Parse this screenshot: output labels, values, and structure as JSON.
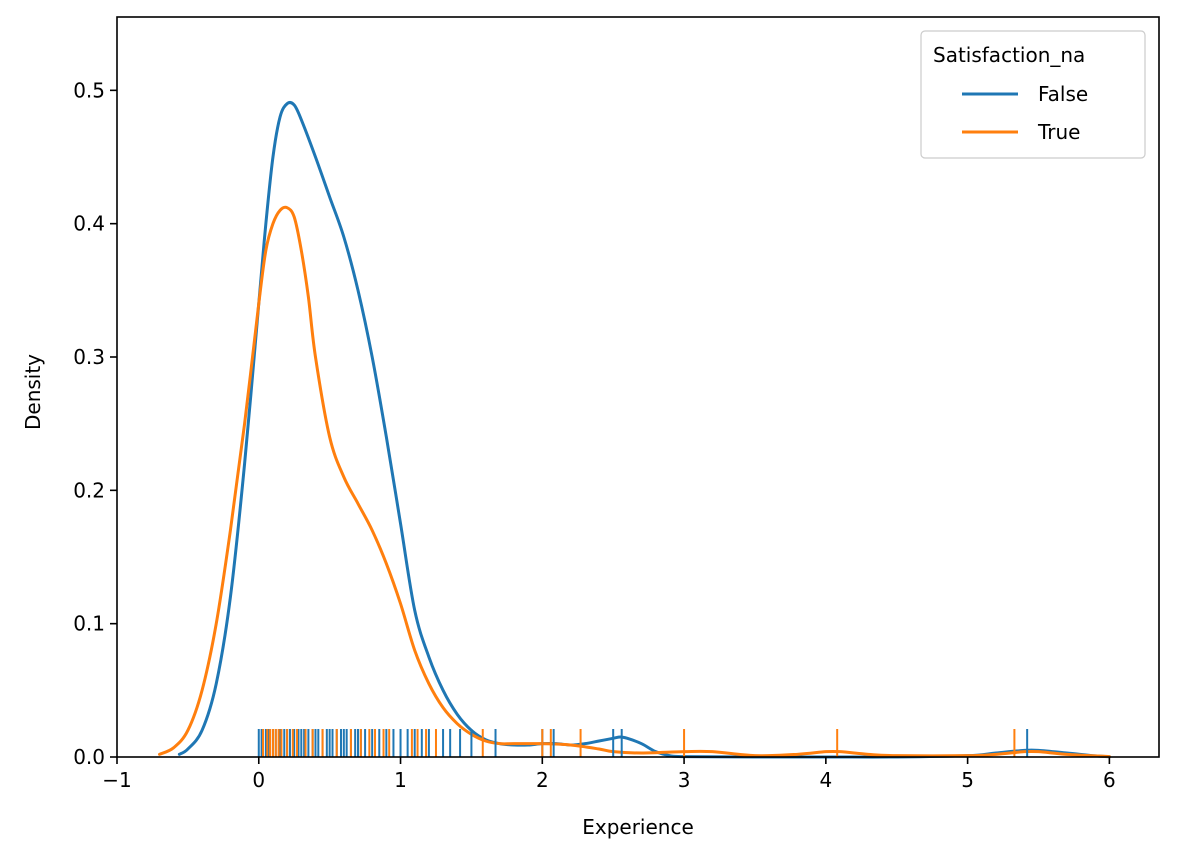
{
  "chart_data": {
    "type": "line",
    "subtype": "kde_with_rug",
    "xlabel": "Experience",
    "ylabel": "Density",
    "xlim": [
      -1,
      6.35
    ],
    "ylim": [
      0,
      0.555
    ],
    "xticks": [
      -1,
      0,
      1,
      2,
      3,
      4,
      5,
      6
    ],
    "xtick_labels": [
      "−1",
      "0",
      "1",
      "2",
      "3",
      "4",
      "5",
      "6"
    ],
    "yticks": [
      0.0,
      0.1,
      0.2,
      0.3,
      0.4,
      0.5
    ],
    "ytick_labels": [
      "0.0",
      "0.1",
      "0.2",
      "0.3",
      "0.4",
      "0.5"
    ],
    "grid": false,
    "legend": {
      "title": "Satisfaction_na",
      "placement": "top-right"
    },
    "series": [
      {
        "name": "False",
        "color": "#1f77b4",
        "x": [
          -0.56,
          -0.5,
          -0.4,
          -0.3,
          -0.2,
          -0.1,
          0.0,
          0.05,
          0.1,
          0.15,
          0.2,
          0.25,
          0.3,
          0.4,
          0.5,
          0.6,
          0.7,
          0.8,
          0.9,
          1.0,
          1.1,
          1.2,
          1.3,
          1.4,
          1.5,
          1.6,
          1.7,
          1.8,
          1.9,
          2.0,
          2.1,
          2.2,
          2.3,
          2.4,
          2.5,
          2.55,
          2.6,
          2.7,
          2.8,
          2.9,
          3.0,
          3.5,
          4.0,
          4.5,
          5.0,
          5.2,
          5.4,
          5.5,
          5.7,
          5.9,
          6.0
        ],
        "y": [
          0.002,
          0.006,
          0.02,
          0.055,
          0.12,
          0.22,
          0.34,
          0.4,
          0.45,
          0.48,
          0.49,
          0.489,
          0.478,
          0.45,
          0.42,
          0.39,
          0.35,
          0.3,
          0.24,
          0.175,
          0.11,
          0.075,
          0.05,
          0.032,
          0.02,
          0.013,
          0.01,
          0.009,
          0.009,
          0.01,
          0.01,
          0.009,
          0.01,
          0.012,
          0.014,
          0.015,
          0.014,
          0.01,
          0.004,
          0.001,
          0.0003,
          0.0,
          0.0,
          0.0,
          0.001,
          0.003,
          0.005,
          0.005,
          0.003,
          0.0008,
          0.0002
        ]
      },
      {
        "name": "True",
        "color": "#ff7f0e",
        "x": [
          -0.7,
          -0.6,
          -0.5,
          -0.4,
          -0.3,
          -0.2,
          -0.1,
          0.0,
          0.05,
          0.1,
          0.15,
          0.2,
          0.25,
          0.3,
          0.35,
          0.4,
          0.5,
          0.6,
          0.7,
          0.8,
          0.9,
          1.0,
          1.1,
          1.2,
          1.3,
          1.4,
          1.5,
          1.6,
          1.7,
          1.8,
          2.0,
          2.2,
          2.4,
          2.5,
          2.7,
          3.0,
          3.2,
          3.5,
          3.8,
          4.0,
          4.1,
          4.3,
          4.5,
          5.0,
          5.2,
          5.4,
          5.5,
          5.7,
          6.0
        ],
        "y": [
          0.002,
          0.007,
          0.02,
          0.05,
          0.1,
          0.17,
          0.25,
          0.34,
          0.38,
          0.4,
          0.41,
          0.412,
          0.405,
          0.38,
          0.345,
          0.3,
          0.24,
          0.21,
          0.19,
          0.17,
          0.145,
          0.115,
          0.08,
          0.055,
          0.037,
          0.025,
          0.017,
          0.012,
          0.01,
          0.01,
          0.01,
          0.009,
          0.006,
          0.004,
          0.003,
          0.004,
          0.004,
          0.001,
          0.002,
          0.004,
          0.004,
          0.002,
          0.001,
          0.001,
          0.002,
          0.004,
          0.004,
          0.002,
          0.0003
        ]
      }
    ],
    "rug": [
      {
        "series": "False",
        "color": "#1f77b4",
        "values": [
          0.0,
          0.02,
          0.05,
          0.07,
          0.1,
          0.12,
          0.15,
          0.18,
          0.2,
          0.22,
          0.25,
          0.28,
          0.3,
          0.32,
          0.35,
          0.38,
          0.4,
          0.42,
          0.45,
          0.48,
          0.5,
          0.52,
          0.55,
          0.58,
          0.6,
          0.62,
          0.65,
          0.68,
          0.7,
          0.72,
          0.75,
          0.8,
          0.85,
          0.9,
          0.95,
          1.0,
          1.05,
          1.1,
          1.15,
          1.2,
          1.3,
          1.35,
          1.42,
          1.5,
          1.67,
          2.0,
          2.08,
          2.5,
          2.56,
          5.42
        ]
      },
      {
        "series": "True",
        "color": "#ff7f0e",
        "values": [
          0.03,
          0.06,
          0.08,
          0.1,
          0.12,
          0.14,
          0.16,
          0.2,
          0.24,
          0.27,
          0.33,
          0.38,
          0.45,
          0.55,
          0.65,
          0.72,
          0.78,
          0.82,
          0.88,
          0.92,
          1.08,
          1.12,
          1.18,
          1.25,
          1.58,
          2.0,
          2.06,
          2.27,
          3.0,
          4.08,
          5.33
        ]
      }
    ]
  }
}
